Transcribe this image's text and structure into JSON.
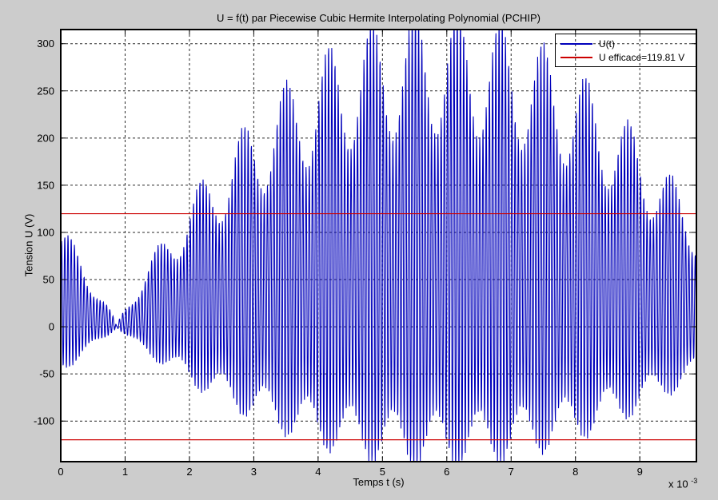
{
  "figure": {
    "background_color": "#cccccc",
    "plot_background_color": "#ffffff",
    "frame_color": "#000000",
    "grid_color": "#2a2a2a"
  },
  "chart_data": {
    "type": "line",
    "title": "U = f(t) par Piecewise Cubic Hermite Interpolating Polynomial (PCHIP)",
    "xlabel": "Temps t (s)",
    "ylabel": "Tension U (V)",
    "x_axis_exponent": {
      "base": "x 10",
      "exponent": "-3"
    },
    "x_ticks_ms": [
      0,
      1,
      2,
      3,
      4,
      5,
      6,
      7,
      8,
      9
    ],
    "y_ticks_v": [
      -100,
      -50,
      0,
      50,
      100,
      150,
      200,
      250,
      300
    ],
    "xlim_ms": [
      0,
      9.88
    ],
    "ylim_v": [
      -143,
      315
    ],
    "grid": true,
    "legend": {
      "position": "northeast",
      "entries": [
        {
          "label": "U(t)",
          "color": "#0000bb"
        },
        {
          "label": "U efficace=119.81 V",
          "color": "#cc0000"
        }
      ]
    },
    "rms_value_v": 119.81,
    "series": [
      {
        "name": "U(t)",
        "color": "#0000bb",
        "description": "PCHIP-interpolated undersampled sine showing beat envelope; node near t=0.87 ms, peak ~311 V near t=5-7 ms, asymmetric negative excursion ~-143 V",
        "signal_model": {
          "carrier_cycles_per_ms": 20,
          "envelope_peak_v": 340,
          "envelope_node_ms": 0.87,
          "envelope_half_period_ms": 10,
          "envelope_shape_exp": 0.85,
          "subbeat_cycles_per_ms": 1.5,
          "subbeat_base": 0.8,
          "subbeat_depth": 0.2,
          "positive_fraction": 0.725,
          "dc_fraction": 0.275,
          "sample_step_ms": 0.004
        }
      },
      {
        "name": "U efficace",
        "type": "hline",
        "values_v": [
          119.81,
          -119.81
        ],
        "color": "#cc0000"
      }
    ]
  }
}
